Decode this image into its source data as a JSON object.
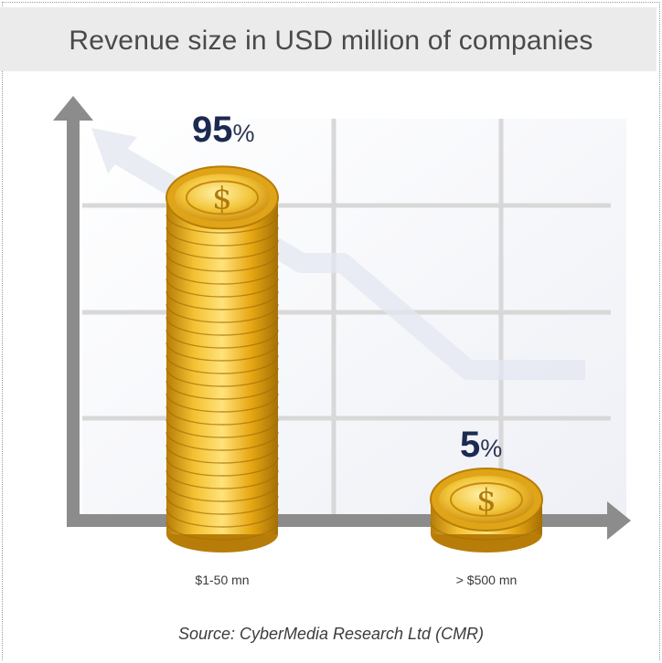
{
  "title": "Revenue size in USD million of companies",
  "source": "Source: CyberMedia Research Ltd (CMR)",
  "colors": {
    "axis": "#8c8c8c",
    "grid": "#d8d8d8",
    "coin": "#e8b21e",
    "coin_dark": "#b77d08",
    "coin_light": "#ffe27a",
    "label_dark": "#1c2a52"
  },
  "chart_data": {
    "type": "bar",
    "categories": [
      "$1-50 mn",
      "> $500 mn"
    ],
    "values": [
      95,
      5
    ],
    "data_labels": [
      {
        "number": "95",
        "unit": "%"
      },
      {
        "number": "5",
        "unit": "%"
      }
    ],
    "ylim": [
      0,
      100
    ],
    "grid": true,
    "style": "stacked gold coins, trend arrow in background"
  }
}
